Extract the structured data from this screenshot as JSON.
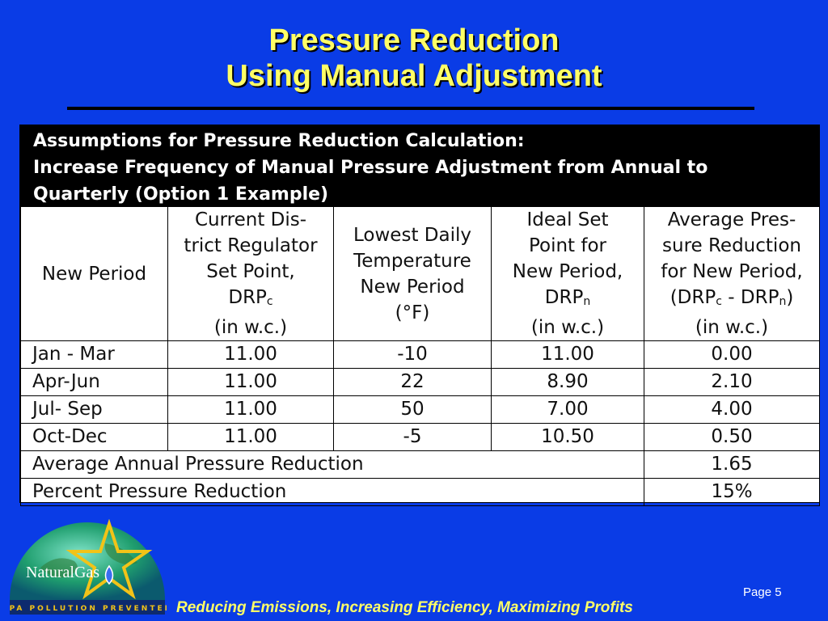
{
  "title": {
    "line1": "Pressure Reduction",
    "line2": "Using Manual Adjustment"
  },
  "table": {
    "header_line1": "Assumptions for Pressure Reduction Calculation:",
    "header_line2": "Increase Frequency of Manual Pressure Adjustment from Annual to",
    "header_line3": "Quarterly (Option 1 Example)",
    "columns": {
      "c1": "New Period",
      "c2_l1": "Current Dis-",
      "c2_l2": "trict Regulator",
      "c2_l3": "Set Point,",
      "c2_l4a": "DRP",
      "c2_l4sub": "c",
      "c2_l5": "(in w.c.)",
      "c3_l1": "Lowest Daily",
      "c3_l2": "Temperature",
      "c3_l3": "New Period",
      "c3_l4": "(°F)",
      "c4_l1": "Ideal Set",
      "c4_l2": "Point for",
      "c4_l3": "New Period,",
      "c4_l4a": "DRP",
      "c4_l4sub": "n",
      "c4_l5": "(in w.c.)",
      "c5_l1": "Average Pres-",
      "c5_l2": "sure Reduction",
      "c5_l3": "for New Period,",
      "c5_l4a": "(DRP",
      "c5_l4sub1": "c",
      "c5_l4b": " - DRP",
      "c5_l4sub2": "n",
      "c5_l4c": ")",
      "c5_l5": "(in w.c.)"
    },
    "rows": [
      {
        "period": "Jan - Mar",
        "current": "11.00",
        "temp": "-10",
        "ideal": "11.00",
        "reduction": "0.00"
      },
      {
        "period": "Apr-Jun",
        "current": "11.00",
        "temp": "22",
        "ideal": "8.90",
        "reduction": "2.10"
      },
      {
        "period": "Jul- Sep",
        "current": "11.00",
        "temp": "50",
        "ideal": "7.00",
        "reduction": "4.00"
      },
      {
        "period": "Oct-Dec",
        "current": "11.00",
        "temp": "-5",
        "ideal": "10.50",
        "reduction": "0.50"
      }
    ],
    "summary": [
      {
        "label": "Average Annual Pressure Reduction",
        "value": "1.65"
      },
      {
        "label": "Percent Pressure Reduction",
        "value": "15%"
      }
    ]
  },
  "logo": {
    "brand": "NaturalGas",
    "program": "EPA POLLUTION PREVENTER"
  },
  "footer": {
    "page": "Page 5",
    "tagline": "Reducing Emissions, Increasing Efficiency, Maximizing Profits"
  },
  "colors": {
    "background": "#0a3ce6",
    "title": "#ffff66",
    "header_band": "#000000"
  }
}
